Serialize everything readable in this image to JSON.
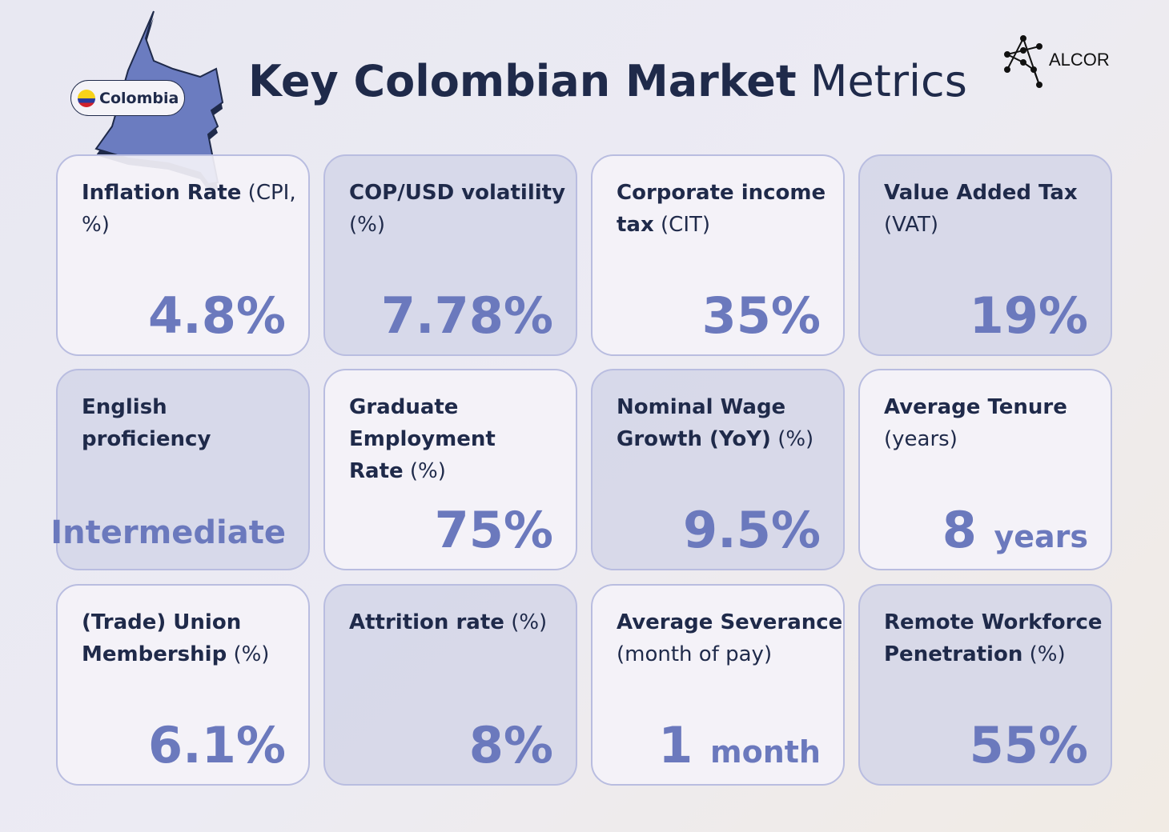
{
  "title": {
    "bold": "Key Colombian Market",
    "regular": "Metrics"
  },
  "brand": {
    "name": "ALCOR"
  },
  "country": {
    "label": "Colombia",
    "icon": "colombia-flag-icon"
  },
  "colors": {
    "accent": "#6b79bd",
    "title": "#1f2a4a",
    "map": "#6b7cc0"
  },
  "cards": [
    {
      "bold": "Inflation Rate",
      "regular": "(CPI, %)",
      "value": "4.8%",
      "unit": ""
    },
    {
      "bold": "COP/USD volatility",
      "regular": "(%)",
      "value": "7.78%",
      "unit": ""
    },
    {
      "bold": "Corporate income tax",
      "regular": "(CIT)",
      "value": "35%",
      "unit": ""
    },
    {
      "bold": "Value Added Tax",
      "regular": "(VAT)",
      "value": "19%",
      "unit": ""
    },
    {
      "bold": "English proficiency",
      "regular": "",
      "value": "Intermediate",
      "unit": ""
    },
    {
      "bold": "Graduate Employment Rate",
      "regular": "(%)",
      "value": "75%",
      "unit": ""
    },
    {
      "bold": "Nominal Wage Growth (YoY)",
      "regular": "(%)",
      "value": "9.5%",
      "unit": ""
    },
    {
      "bold": "Average Tenure",
      "regular": "(years)",
      "value": "8",
      "unit": "years"
    },
    {
      "bold": "(Trade) Union Membership",
      "regular": "(%)",
      "value": "6.1%",
      "unit": ""
    },
    {
      "bold": "Attrition rate",
      "regular": "(%)",
      "value": "8%",
      "unit": ""
    },
    {
      "bold": "Average Severance",
      "regular": "(month of pay)",
      "value": "1",
      "unit": "month"
    },
    {
      "bold": "Remote Workforce Penetration",
      "regular": "(%)",
      "value": "55%",
      "unit": ""
    }
  ]
}
